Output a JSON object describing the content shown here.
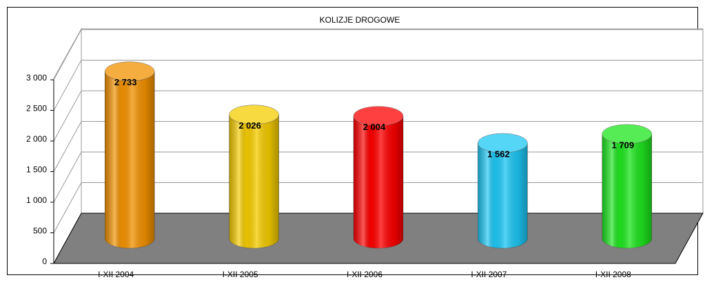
{
  "chart_data": {
    "type": "bar3d",
    "title": "KOLIZJE DROGOWE",
    "categories": [
      "I-XII 2004",
      "I-XII 2005",
      "I-XII 2006",
      "I-XII 2007",
      "I-XII 2008"
    ],
    "values": [
      2733,
      2026,
      2004,
      1562,
      1709
    ],
    "value_labels": [
      "2 733",
      "2 026",
      "2 004",
      "1 562",
      "1 709"
    ],
    "colors": [
      "#f39200",
      "#f5cc00",
      "#ff0000",
      "#1ec8f5",
      "#1ee61e"
    ],
    "ylim": [
      0,
      3000
    ],
    "yticks": [
      0,
      500,
      {
        "value": 1000,
        "label": "1 000"
      },
      {
        "value": 1500,
        "label": "1 500"
      },
      {
        "value": 2000,
        "label": "2 000"
      },
      {
        "value": 2500,
        "label": "2 500"
      },
      {
        "value": 3000,
        "label": "3 000"
      }
    ],
    "grid": true
  }
}
